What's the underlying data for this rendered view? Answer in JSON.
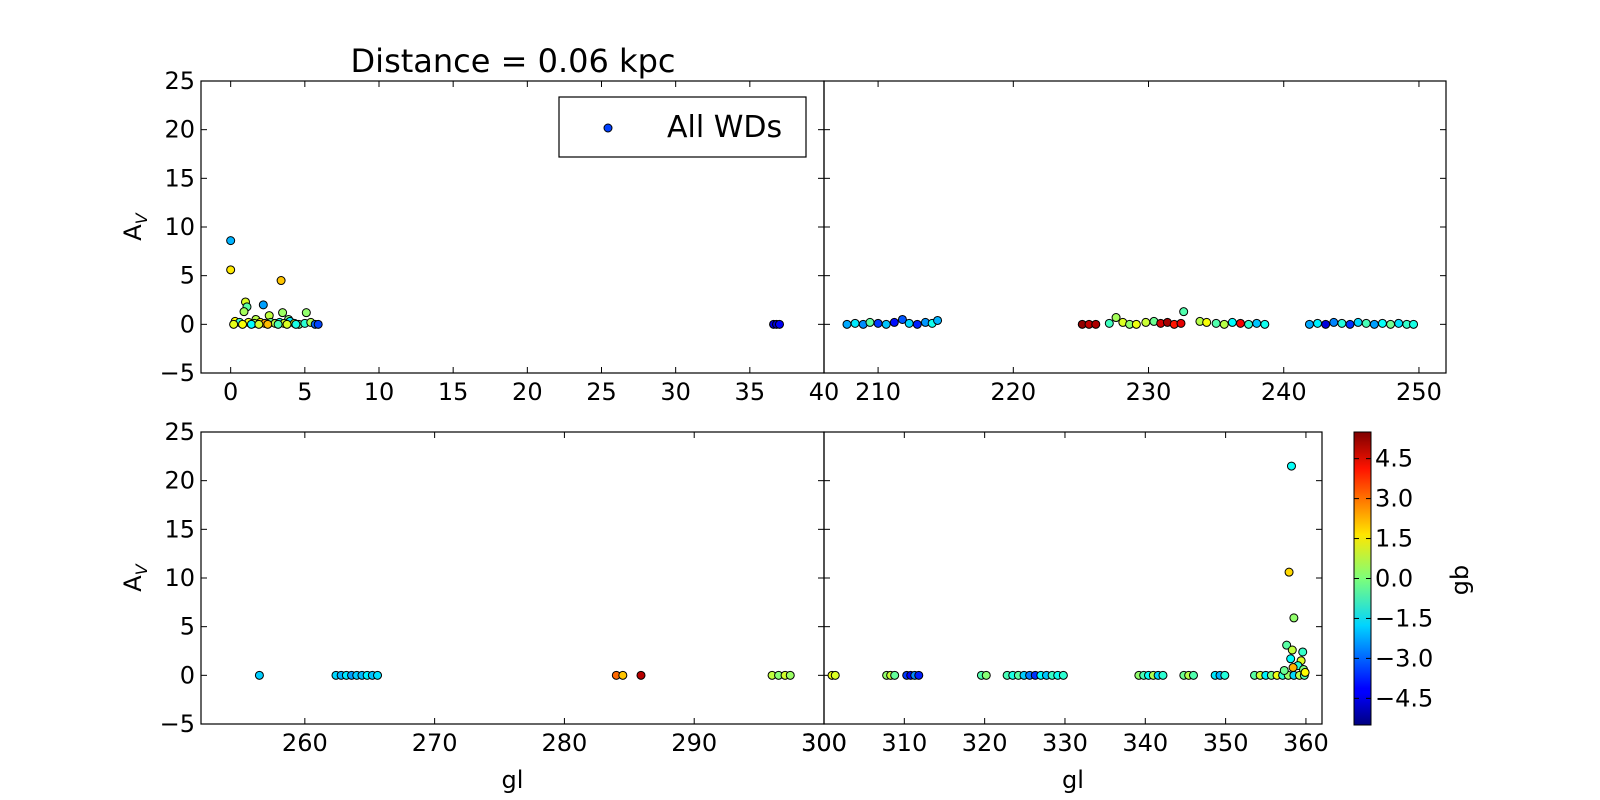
{
  "title": "Distance = 0.06 kpc",
  "legend_label": "All WDs",
  "colorbar": {
    "label": "gb",
    "range": [
      -5.5,
      5.5
    ],
    "ticks": [
      "4.5",
      "3.0",
      "1.5",
      "0.0",
      "−1.5",
      "−3.0",
      "−4.5"
    ],
    "tick_values": [
      4.5,
      3.0,
      1.5,
      0.0,
      -1.5,
      -3.0,
      -4.5
    ]
  },
  "chart_data": [
    {
      "type": "scatter",
      "panel": "top-left",
      "ylabel": "A_V",
      "xlabel": "",
      "xlim": [
        -2,
        40
      ],
      "ylim": [
        -5,
        25
      ],
      "xticks": [
        "0",
        "5",
        "10",
        "15",
        "20",
        "25",
        "30",
        "35",
        "40"
      ],
      "xtick_values": [
        0,
        5,
        10,
        15,
        20,
        25,
        30,
        35,
        40
      ],
      "yticks": [
        "−5",
        "0",
        "5",
        "10",
        "15",
        "20",
        "25"
      ],
      "ytick_values": [
        -5,
        0,
        5,
        10,
        15,
        20,
        25
      ],
      "legend": "top-right",
      "points": [
        [
          0.0,
          8.6,
          -2.2
        ],
        [
          0.0,
          5.6,
          1.6
        ],
        [
          1.0,
          2.3,
          1.0
        ],
        [
          1.1,
          1.8,
          -0.4
        ],
        [
          0.9,
          1.3,
          0.4
        ],
        [
          2.2,
          2.0,
          -2.4
        ],
        [
          3.4,
          4.5,
          2.0
        ],
        [
          3.5,
          1.2,
          0.3
        ],
        [
          5.1,
          1.2,
          0.2
        ],
        [
          2.6,
          0.9,
          0.7
        ],
        [
          3.9,
          0.5,
          0.0
        ],
        [
          1.7,
          0.5,
          0.6
        ],
        [
          0.3,
          0.3,
          1.4
        ],
        [
          0.6,
          0.2,
          -0.8
        ],
        [
          1.2,
          0.2,
          1.2
        ],
        [
          1.6,
          0.1,
          0.5
        ],
        [
          2.0,
          0.2,
          1.5
        ],
        [
          2.3,
          0.1,
          2.4
        ],
        [
          2.7,
          0.2,
          -0.3
        ],
        [
          3.0,
          0.1,
          0.6
        ],
        [
          3.3,
          0.2,
          -1.2
        ],
        [
          3.6,
          0.1,
          0.9
        ],
        [
          4.0,
          0.3,
          -1.6
        ],
        [
          4.3,
          0.1,
          1.1
        ],
        [
          4.6,
          0.0,
          0.0
        ],
        [
          5.0,
          0.1,
          -0.9
        ],
        [
          5.4,
          0.2,
          0.5
        ],
        [
          5.7,
          0.0,
          -3.0
        ],
        [
          5.9,
          0.0,
          -3.4
        ],
        [
          0.2,
          0.0,
          1.1
        ],
        [
          0.8,
          0.0,
          1.3
        ],
        [
          1.4,
          0.0,
          -1.4
        ],
        [
          1.9,
          0.0,
          0.9
        ],
        [
          2.5,
          0.0,
          2.1
        ],
        [
          3.2,
          0.0,
          -0.6
        ],
        [
          3.8,
          0.0,
          1.0
        ],
        [
          4.4,
          0.0,
          -1.1
        ],
        [
          36.6,
          0.0,
          -4.4
        ],
        [
          36.8,
          0.0,
          -4.6
        ],
        [
          37.0,
          0.0,
          -4.2
        ]
      ]
    },
    {
      "type": "scatter",
      "panel": "top-right",
      "ylabel": "",
      "xlabel": "",
      "xlim": [
        206,
        252
      ],
      "ylim": [
        -5,
        25
      ],
      "xticks": [
        "210",
        "220",
        "230",
        "240",
        "250"
      ],
      "xtick_values": [
        210,
        220,
        230,
        240,
        250
      ],
      "points": [
        [
          207.7,
          0.0,
          -2.3
        ],
        [
          208.3,
          0.1,
          -1.6
        ],
        [
          208.9,
          0.0,
          -2.6
        ],
        [
          209.4,
          0.2,
          -0.4
        ],
        [
          210.0,
          0.1,
          -3.5
        ],
        [
          210.6,
          0.0,
          -2.0
        ],
        [
          211.2,
          0.2,
          -4.0
        ],
        [
          211.8,
          0.5,
          -3.2
        ],
        [
          212.3,
          0.1,
          -1.8
        ],
        [
          212.9,
          0.0,
          -3.8
        ],
        [
          213.5,
          0.2,
          -2.5
        ],
        [
          214.0,
          0.1,
          -1.2
        ],
        [
          214.4,
          0.4,
          -2.2
        ],
        [
          225.1,
          0.0,
          5.3
        ],
        [
          225.6,
          0.0,
          4.8
        ],
        [
          226.1,
          0.0,
          5.0
        ],
        [
          227.1,
          0.1,
          -0.7
        ],
        [
          227.6,
          0.7,
          0.4
        ],
        [
          228.1,
          0.2,
          1.0
        ],
        [
          228.6,
          0.0,
          0.2
        ],
        [
          229.1,
          0.0,
          1.2
        ],
        [
          229.8,
          0.2,
          0.8
        ],
        [
          230.4,
          0.3,
          -0.2
        ],
        [
          230.9,
          0.1,
          4.6
        ],
        [
          231.4,
          0.2,
          5.1
        ],
        [
          231.9,
          0.0,
          3.9
        ],
        [
          232.4,
          0.1,
          4.4
        ],
        [
          232.6,
          1.3,
          -0.5
        ],
        [
          233.8,
          0.3,
          0.6
        ],
        [
          234.3,
          0.2,
          1.3
        ],
        [
          235.0,
          0.1,
          -0.5
        ],
        [
          235.6,
          0.0,
          0.6
        ],
        [
          236.2,
          0.2,
          -1.4
        ],
        [
          236.8,
          0.1,
          4.2
        ],
        [
          237.4,
          0.0,
          -0.9
        ],
        [
          238.0,
          0.1,
          -2.0
        ],
        [
          238.6,
          0.0,
          -1.2
        ],
        [
          241.9,
          0.0,
          -2.3
        ],
        [
          242.5,
          0.1,
          -1.5
        ],
        [
          243.1,
          0.0,
          -4.5
        ],
        [
          243.7,
          0.2,
          -2.7
        ],
        [
          244.3,
          0.1,
          -1.0
        ],
        [
          244.9,
          0.0,
          -3.6
        ],
        [
          245.5,
          0.2,
          -1.8
        ],
        [
          246.1,
          0.1,
          -0.6
        ],
        [
          246.7,
          0.0,
          -2.4
        ],
        [
          247.3,
          0.1,
          -1.3
        ],
        [
          247.9,
          0.0,
          -0.2
        ],
        [
          248.5,
          0.1,
          -1.7
        ],
        [
          249.1,
          0.0,
          -0.8
        ],
        [
          249.6,
          0.0,
          -1.1
        ]
      ]
    },
    {
      "type": "scatter",
      "panel": "bottom-left",
      "ylabel": "A_V",
      "xlabel": "gl",
      "xlim": [
        252,
        300
      ],
      "ylim": [
        -5,
        25
      ],
      "xticks": [
        "260",
        "270",
        "280",
        "290",
        "300"
      ],
      "xtick_values": [
        260,
        270,
        280,
        290,
        300
      ],
      "yticks": [
        "−5",
        "0",
        "5",
        "10",
        "15",
        "20",
        "25"
      ],
      "ytick_values": [
        -5,
        0,
        5,
        10,
        15,
        20,
        25
      ],
      "points": [
        [
          256.5,
          0.0,
          -1.9
        ],
        [
          262.4,
          0.0,
          -1.8
        ],
        [
          262.8,
          0.0,
          -2.2
        ],
        [
          263.2,
          0.0,
          -1.6
        ],
        [
          263.6,
          0.0,
          -2.4
        ],
        [
          264.0,
          0.0,
          -1.9
        ],
        [
          264.4,
          0.0,
          -2.1
        ],
        [
          264.8,
          0.0,
          -1.5
        ],
        [
          265.2,
          0.0,
          -2.0
        ],
        [
          265.6,
          0.0,
          -1.7
        ],
        [
          284.0,
          0.0,
          3.0
        ],
        [
          284.5,
          0.0,
          2.0
        ],
        [
          285.9,
          0.0,
          4.9
        ],
        [
          296.0,
          0.0,
          0.7
        ],
        [
          296.5,
          0.0,
          0.1
        ],
        [
          297.0,
          0.0,
          0.9
        ],
        [
          297.4,
          0.0,
          0.3
        ]
      ]
    },
    {
      "type": "scatter",
      "panel": "bottom-right",
      "ylabel": "",
      "xlabel": "gl",
      "xlim": [
        300,
        362
      ],
      "ylim": [
        -5,
        25
      ],
      "xticks": [
        "300",
        "310",
        "320",
        "330",
        "340",
        "350",
        "360"
      ],
      "xtick_values": [
        300,
        310,
        320,
        330,
        340,
        350,
        360
      ],
      "points": [
        [
          301.0,
          0.0,
          1.2
        ],
        [
          301.4,
          0.0,
          1.0
        ],
        [
          307.8,
          0.0,
          0.2
        ],
        [
          308.3,
          0.0,
          0.8
        ],
        [
          308.8,
          0.0,
          -0.3
        ],
        [
          310.3,
          0.0,
          -3.5
        ],
        [
          310.8,
          0.0,
          -4.2
        ],
        [
          311.3,
          0.0,
          -2.6
        ],
        [
          311.8,
          0.0,
          -3.8
        ],
        [
          319.6,
          0.0,
          -0.5
        ],
        [
          320.2,
          0.0,
          0.1
        ],
        [
          322.8,
          0.0,
          -0.6
        ],
        [
          323.5,
          0.0,
          -1.1
        ],
        [
          324.2,
          0.0,
          -0.4
        ],
        [
          324.9,
          0.0,
          -1.9
        ],
        [
          325.6,
          0.0,
          -2.8
        ],
        [
          326.3,
          0.0,
          -3.6
        ],
        [
          327.0,
          0.0,
          -1.4
        ],
        [
          327.7,
          0.0,
          -2.0
        ],
        [
          328.4,
          0.0,
          -0.8
        ],
        [
          329.1,
          0.0,
          -1.2
        ],
        [
          329.8,
          0.0,
          -0.9
        ],
        [
          339.2,
          0.0,
          0.2
        ],
        [
          339.8,
          0.0,
          -0.6
        ],
        [
          340.4,
          0.0,
          -1.3
        ],
        [
          341.0,
          0.0,
          0.5
        ],
        [
          341.6,
          0.0,
          -1.8
        ],
        [
          342.2,
          0.0,
          -0.9
        ],
        [
          344.8,
          0.0,
          -0.2
        ],
        [
          345.4,
          0.0,
          0.6
        ],
        [
          346.0,
          0.0,
          -0.5
        ],
        [
          348.7,
          0.0,
          -1.6
        ],
        [
          349.3,
          0.0,
          -2.2
        ],
        [
          349.9,
          0.0,
          -1.0
        ],
        [
          353.6,
          0.0,
          -0.4
        ],
        [
          354.3,
          0.0,
          0.8
        ],
        [
          355.0,
          0.0,
          -1.5
        ],
        [
          355.7,
          0.0,
          -0.1
        ],
        [
          356.4,
          0.0,
          1.2
        ],
        [
          357.1,
          0.0,
          -0.9
        ],
        [
          357.8,
          0.0,
          0.3
        ],
        [
          358.5,
          0.0,
          -1.8
        ],
        [
          359.2,
          0.0,
          0.6
        ],
        [
          359.8,
          0.0,
          -0.5
        ],
        [
          358.2,
          21.5,
          -1.3
        ],
        [
          357.9,
          10.6,
          1.8
        ],
        [
          358.5,
          5.9,
          0.2
        ],
        [
          357.6,
          3.1,
          -0.4
        ],
        [
          358.3,
          2.6,
          0.7
        ],
        [
          359.6,
          2.4,
          -0.8
        ],
        [
          358.1,
          1.7,
          -1.4
        ],
        [
          359.4,
          1.5,
          1.0
        ],
        [
          359.0,
          1.0,
          -1.0
        ],
        [
          358.4,
          0.8,
          2.2
        ],
        [
          359.7,
          0.6,
          0.0
        ],
        [
          357.3,
          0.5,
          -0.2
        ],
        [
          359.9,
          0.3,
          1.4
        ]
      ]
    }
  ]
}
